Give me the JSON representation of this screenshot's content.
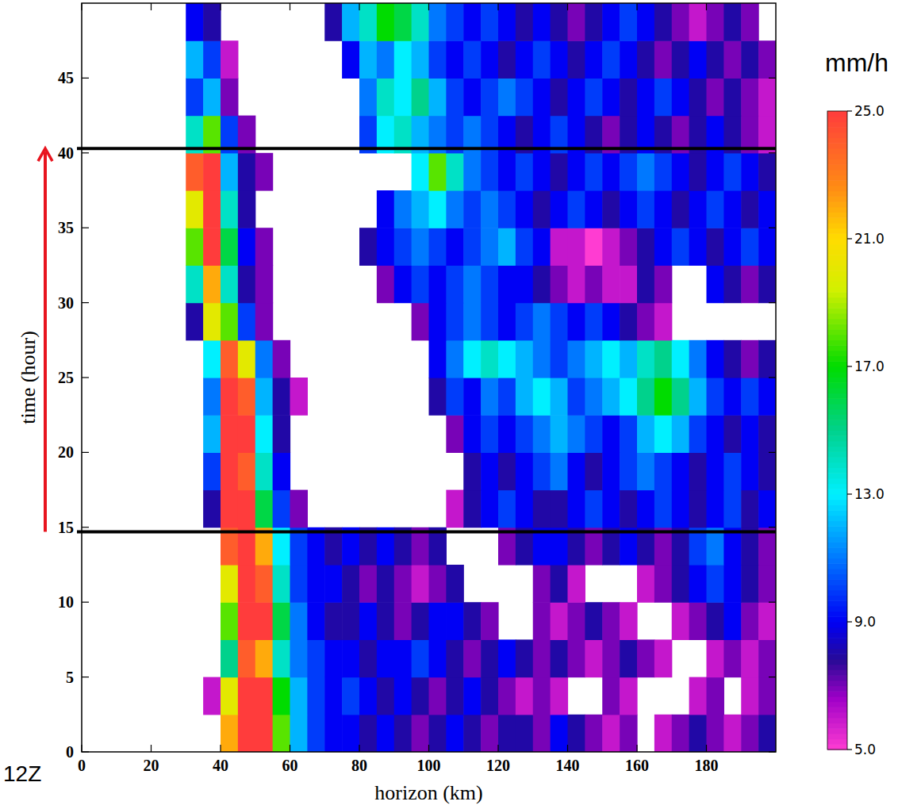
{
  "chart_data": {
    "type": "heatmap",
    "x_label": "horizon (km)",
    "y_label": "time (hour)",
    "xlim": [
      0,
      200
    ],
    "ylim": [
      0,
      50
    ],
    "xticks": [
      0,
      20,
      40,
      60,
      80,
      100,
      120,
      140,
      160,
      180
    ],
    "yticks": [
      0,
      5,
      10,
      15,
      20,
      25,
      30,
      35,
      40,
      45
    ],
    "x_bins": [
      0,
      5,
      10,
      15,
      20,
      25,
      30,
      35,
      40,
      45,
      50,
      55,
      60,
      65,
      70,
      75,
      80,
      85,
      90,
      95,
      100,
      105,
      110,
      115,
      120,
      125,
      130,
      135,
      140,
      145,
      150,
      155,
      160,
      165,
      170,
      175,
      180,
      185,
      190,
      195,
      200
    ],
    "y_bins": [
      0,
      2.5,
      5,
      7.5,
      10,
      12.5,
      15,
      17.5,
      20,
      22.5,
      25,
      27.5,
      30,
      32.5,
      35,
      37.5,
      40,
      42.5,
      45,
      47.5,
      50
    ],
    "cells": [
      [
        null,
        null,
        null,
        null,
        null,
        null,
        null,
        null,
        22,
        25,
        25,
        18,
        12,
        10,
        9,
        9,
        8,
        9,
        8,
        7,
        8,
        9,
        8,
        7,
        8,
        8,
        7,
        9,
        8,
        7,
        6,
        7,
        null,
        6,
        7,
        8,
        7,
        6,
        7,
        8
      ],
      [
        null,
        null,
        null,
        null,
        null,
        null,
        null,
        6,
        20,
        25,
        25,
        17,
        12,
        10,
        9,
        10,
        9,
        8,
        9,
        8,
        7,
        8,
        9,
        8,
        7,
        6,
        7,
        6,
        null,
        null,
        7,
        6,
        null,
        null,
        null,
        6,
        7,
        null,
        6,
        7
      ],
      [
        null,
        null,
        null,
        null,
        null,
        null,
        null,
        null,
        15,
        24,
        22,
        14,
        11,
        10,
        9,
        9,
        8,
        9,
        9,
        10,
        9,
        8,
        7,
        8,
        9,
        8,
        7,
        8,
        7,
        6,
        7,
        8,
        7,
        6,
        null,
        null,
        6,
        7,
        6,
        7
      ],
      [
        null,
        null,
        null,
        null,
        null,
        null,
        null,
        null,
        18,
        25,
        25,
        16,
        11,
        9,
        8,
        8,
        9,
        8,
        7,
        8,
        9,
        9,
        8,
        7,
        null,
        null,
        7,
        6,
        7,
        8,
        7,
        6,
        null,
        null,
        6,
        7,
        8,
        9,
        7,
        6
      ],
      [
        null,
        null,
        null,
        null,
        null,
        null,
        null,
        null,
        20,
        25,
        24,
        14,
        10,
        9,
        9,
        8,
        7,
        8,
        7,
        6,
        7,
        8,
        null,
        null,
        null,
        null,
        7,
        8,
        6,
        null,
        null,
        null,
        6,
        7,
        8,
        9,
        10,
        9,
        8,
        7
      ],
      [
        null,
        null,
        null,
        null,
        null,
        null,
        null,
        null,
        24,
        25,
        22,
        13,
        10,
        9,
        8,
        9,
        8,
        9,
        8,
        7,
        8,
        null,
        null,
        null,
        7,
        8,
        9,
        9,
        8,
        7,
        8,
        9,
        8,
        7,
        8,
        10,
        11,
        9,
        8,
        7
      ],
      [
        null,
        null,
        null,
        null,
        null,
        null,
        null,
        8,
        25,
        25,
        16,
        10,
        7,
        null,
        null,
        null,
        null,
        null,
        null,
        null,
        null,
        6,
        8,
        9,
        10,
        9,
        8,
        8,
        9,
        10,
        9,
        8,
        9,
        10,
        9,
        8,
        9,
        10,
        8,
        9
      ],
      [
        null,
        null,
        null,
        null,
        null,
        null,
        null,
        10,
        25,
        24,
        14,
        9,
        null,
        null,
        null,
        null,
        null,
        null,
        null,
        null,
        null,
        null,
        8,
        9,
        8,
        9,
        10,
        11,
        9,
        8,
        9,
        10,
        11,
        10,
        9,
        8,
        9,
        10,
        9,
        8
      ],
      [
        null,
        null,
        null,
        null,
        null,
        null,
        null,
        12,
        25,
        25,
        13,
        8,
        null,
        null,
        null,
        null,
        null,
        null,
        null,
        null,
        null,
        7,
        9,
        10,
        9,
        10,
        11,
        12,
        11,
        10,
        9,
        10,
        12,
        13,
        12,
        10,
        9,
        8,
        9,
        8
      ],
      [
        null,
        null,
        null,
        null,
        null,
        null,
        null,
        11,
        25,
        24,
        12,
        8,
        6,
        null,
        null,
        null,
        null,
        null,
        null,
        null,
        8,
        10,
        9,
        11,
        10,
        12,
        13,
        12,
        10,
        11,
        12,
        13,
        15,
        17,
        15,
        12,
        10,
        9,
        10,
        9
      ],
      [
        null,
        null,
        null,
        null,
        null,
        null,
        null,
        13,
        24,
        20,
        11,
        7,
        null,
        null,
        null,
        null,
        null,
        null,
        null,
        null,
        9,
        11,
        13,
        14,
        13,
        12,
        11,
        10,
        11,
        12,
        13,
        12,
        14,
        15,
        13,
        11,
        9,
        8,
        7,
        8
      ],
      [
        null,
        null,
        null,
        null,
        null,
        null,
        8,
        20,
        18,
        10,
        7,
        null,
        null,
        null,
        null,
        null,
        null,
        null,
        null,
        7,
        9,
        10,
        11,
        10,
        9,
        10,
        11,
        10,
        9,
        10,
        9,
        8,
        7,
        6,
        null,
        null,
        null,
        null,
        null,
        null
      ],
      [
        null,
        null,
        null,
        null,
        null,
        null,
        14,
        22,
        14,
        8,
        7,
        null,
        null,
        null,
        null,
        null,
        null,
        7,
        9,
        10,
        9,
        10,
        11,
        10,
        9,
        9,
        8,
        7,
        6,
        7,
        6,
        6,
        8,
        7,
        null,
        null,
        9,
        8,
        7,
        8
      ],
      [
        null,
        null,
        null,
        null,
        null,
        null,
        18,
        25,
        16,
        9,
        7,
        null,
        null,
        null,
        null,
        null,
        8,
        9,
        10,
        11,
        10,
        9,
        10,
        11,
        12,
        10,
        9,
        6,
        6,
        5,
        6,
        7,
        8,
        9,
        10,
        9,
        8,
        9,
        10,
        9
      ],
      [
        null,
        null,
        null,
        null,
        null,
        null,
        20,
        25,
        14,
        8,
        null,
        null,
        null,
        null,
        null,
        null,
        null,
        9,
        11,
        12,
        13,
        11,
        10,
        11,
        10,
        9,
        8,
        9,
        10,
        9,
        8,
        9,
        10,
        9,
        8,
        9,
        10,
        9,
        8,
        9
      ],
      [
        null,
        null,
        null,
        null,
        null,
        null,
        24,
        25,
        12,
        8,
        7,
        null,
        null,
        null,
        null,
        null,
        null,
        null,
        null,
        13,
        18,
        14,
        11,
        10,
        9,
        10,
        9,
        8,
        9,
        10,
        9,
        10,
        11,
        10,
        9,
        8,
        9,
        10,
        9,
        8
      ],
      [
        null,
        null,
        null,
        null,
        null,
        null,
        14,
        18,
        10,
        7,
        null,
        null,
        null,
        null,
        null,
        null,
        10,
        13,
        14,
        12,
        11,
        10,
        11,
        10,
        9,
        8,
        9,
        10,
        9,
        8,
        7,
        8,
        9,
        8,
        7,
        8,
        9,
        8,
        7,
        6
      ],
      [
        null,
        null,
        null,
        null,
        null,
        null,
        10,
        12,
        7,
        null,
        null,
        null,
        null,
        null,
        null,
        null,
        11,
        14,
        13,
        15,
        12,
        10,
        9,
        10,
        11,
        10,
        9,
        8,
        9,
        10,
        9,
        8,
        9,
        10,
        9,
        8,
        7,
        8,
        7,
        6
      ],
      [
        null,
        null,
        null,
        null,
        null,
        null,
        12,
        10,
        6,
        null,
        null,
        null,
        null,
        null,
        null,
        9,
        12,
        11,
        13,
        12,
        10,
        9,
        10,
        9,
        8,
        9,
        10,
        9,
        8,
        9,
        10,
        9,
        8,
        7,
        8,
        9,
        8,
        7,
        8,
        7
      ],
      [
        null,
        null,
        null,
        null,
        null,
        null,
        9,
        8,
        null,
        null,
        null,
        null,
        null,
        null,
        8,
        12,
        14,
        17,
        16,
        14,
        11,
        10,
        9,
        10,
        9,
        8,
        9,
        8,
        7,
        8,
        9,
        10,
        9,
        8,
        7,
        6,
        7,
        8,
        7,
        null
      ]
    ],
    "colorbar": {
      "label": "mm/h",
      "range": [
        5,
        25
      ],
      "ticks": [
        {
          "value": 5,
          "label": "5.0"
        },
        {
          "value": 9,
          "label": "9.0"
        },
        {
          "value": 13,
          "label": "13.0"
        },
        {
          "value": 17,
          "label": "17.0"
        },
        {
          "value": 21,
          "label": "21.0"
        },
        {
          "value": 25,
          "label": "25.0"
        }
      ]
    },
    "annotations": {
      "hlines": [
        14.7,
        40.3
      ],
      "arrow": [
        14.7,
        40.3
      ],
      "text": "12Z"
    }
  }
}
